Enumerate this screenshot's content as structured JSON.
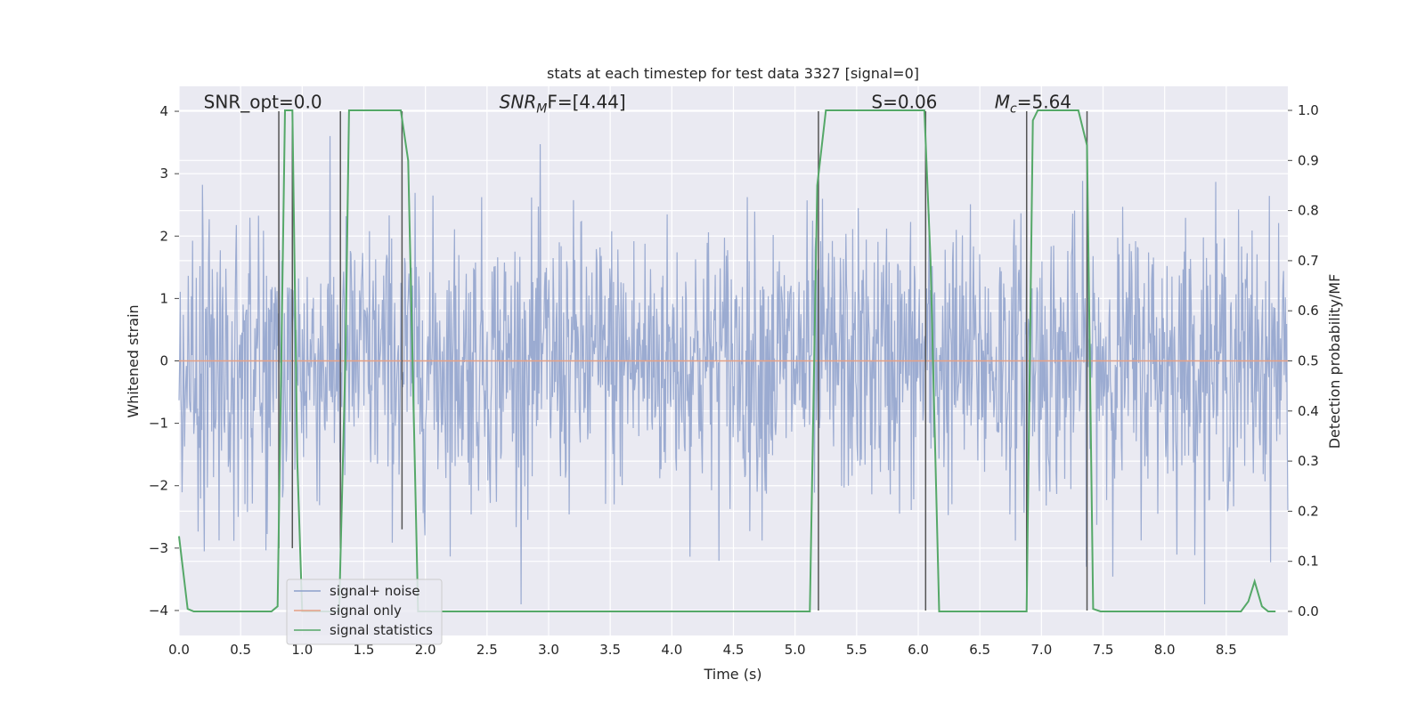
{
  "chart_data": {
    "type": "line",
    "title": "stats at each timestep for test data 3327 [signal=0]",
    "xlabel": "Time (s)",
    "ylabel": "Whitened strain",
    "ylabel_right": "Detection probability/MF",
    "xlim": [
      0,
      9
    ],
    "ylim": [
      -4.4,
      4.4
    ],
    "ylim_right": [
      -0.048,
      1.048
    ],
    "xticks": [
      0.0,
      0.5,
      1.0,
      1.5,
      2.0,
      2.5,
      3.0,
      3.5,
      4.0,
      4.5,
      5.0,
      5.5,
      6.0,
      6.5,
      7.0,
      7.5,
      8.0,
      8.5
    ],
    "xtick_labels": [
      "0.0",
      "0.5",
      "1.0",
      "1.5",
      "2.0",
      "2.5",
      "3.0",
      "3.5",
      "4.0",
      "4.5",
      "5.0",
      "5.5",
      "6.0",
      "6.5",
      "7.0",
      "7.5",
      "8.0",
      "8.5"
    ],
    "yticks": [
      4,
      3,
      2,
      1,
      0,
      -1,
      -2,
      -3,
      -4
    ],
    "ytick_labels": [
      "4",
      "3",
      "2",
      "1",
      "0",
      "−1",
      "−2",
      "−3",
      "−4"
    ],
    "yticks_right": [
      1.0,
      0.9,
      0.8,
      0.7,
      0.6,
      0.5,
      0.4,
      0.3,
      0.2,
      0.1,
      0.0
    ],
    "ytick_labels_right": [
      "1.0",
      "0.9",
      "0.8",
      "0.7",
      "0.6",
      "0.5",
      "0.4",
      "0.3",
      "0.2",
      "0.1",
      "0.0"
    ],
    "grid": true,
    "legend_position": "lower-left",
    "annotations": [
      {
        "text": "SNR_opt=0.0",
        "x": 0.2,
        "y": 4.05
      },
      {
        "text": "SNR",
        "sub": "M",
        "suffix": "F=[4.44]",
        "x": 2.6,
        "y": 4.05
      },
      {
        "text": "S=0.06",
        "x": 5.62,
        "y": 4.05
      },
      {
        "text": "M",
        "sub": "c",
        "suffix": "=5.64",
        "x": 6.62,
        "y": 4.05
      }
    ],
    "series": [
      {
        "name": "signal+ noise",
        "color": "#8da0cb",
        "description": "noise samples plotted across 0–9 s, amplitude within about ±3.9",
        "envelope_quantile_level": 1.55,
        "envelope_max": 3.9,
        "sample_count": 1800
      },
      {
        "name": "signal only",
        "color": "#e5a084",
        "x": [
          0,
          9
        ],
        "y": [
          0,
          0
        ]
      },
      {
        "name": "signal statistics",
        "color": "#55a868",
        "axis": "right",
        "x": [
          0.0,
          0.07,
          0.12,
          0.75,
          0.8,
          0.86,
          0.92,
          0.96,
          1.0,
          1.3,
          1.35,
          1.38,
          1.8,
          1.86,
          1.94,
          5.12,
          5.18,
          5.25,
          6.05,
          6.1,
          6.17,
          6.25,
          6.88,
          6.93,
          6.97,
          7.05,
          7.3,
          7.37,
          7.42,
          7.48,
          8.62,
          8.68,
          8.73,
          8.79,
          8.84,
          8.9
        ],
        "y": [
          0.15,
          0.005,
          0.0,
          0.0,
          0.01,
          1.0,
          1.0,
          0.3,
          0.0,
          0.0,
          0.5,
          1.0,
          1.0,
          0.9,
          0.0,
          0.0,
          0.85,
          1.0,
          1.0,
          0.7,
          0.0,
          0.0,
          0.0,
          0.98,
          1.0,
          1.0,
          1.0,
          0.93,
          0.005,
          0.0,
          0.0,
          0.02,
          0.06,
          0.01,
          0.0,
          0.0
        ]
      }
    ],
    "vertical_markers": [
      {
        "x": 0.81,
        "y_top": 4.0,
        "y_bottom": -3.0
      },
      {
        "x": 0.92,
        "y_top": 4.0,
        "y_bottom": -3.0
      },
      {
        "x": 1.31,
        "y_top": 4.0,
        "y_bottom": -3.0
      },
      {
        "x": 1.81,
        "y_top": 4.0,
        "y_bottom": -2.7
      },
      {
        "x": 5.19,
        "y_top": 4.0,
        "y_bottom": -4.0
      },
      {
        "x": 6.06,
        "y_top": 4.0,
        "y_bottom": -4.0
      },
      {
        "x": 6.88,
        "y_top": 4.0,
        "y_bottom": -4.0
      },
      {
        "x": 7.37,
        "y_top": 4.0,
        "y_bottom": -4.0
      }
    ]
  }
}
